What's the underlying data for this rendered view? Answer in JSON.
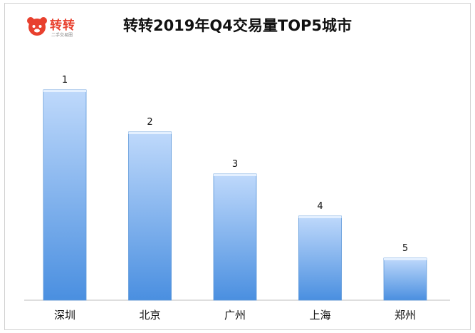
{
  "logo": {
    "brand_text": "转转",
    "sub_text": "二手交易圈"
  },
  "chart_data": {
    "type": "bar",
    "title": "转转2019年Q4交易量TOP5城市",
    "categories": [
      "深圳",
      "北京",
      "广州",
      "上海",
      "郑州"
    ],
    "values": [
      5,
      4,
      3,
      2,
      1
    ],
    "data_labels": [
      "1",
      "2",
      "3",
      "4",
      "5"
    ],
    "xlabel": "",
    "ylabel": "",
    "grid": false,
    "legend": "none",
    "colors": {
      "bar_top": "#bfd9fb",
      "bar_bottom": "#4a8fe0",
      "bar_edge": "#5b97d9",
      "axis": "#bdbdbd"
    }
  }
}
